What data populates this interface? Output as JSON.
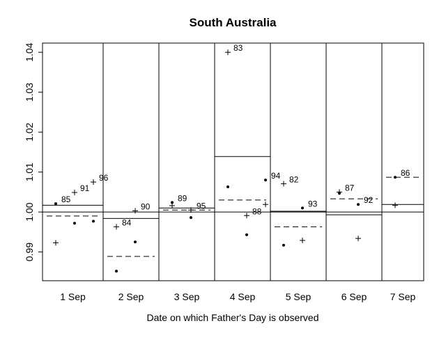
{
  "chart_data": {
    "type": "scatter",
    "title": "South Australia",
    "xlabel": "Date on which Father's Day is observed",
    "ylabel": "",
    "ylim": [
      0.9828,
      1.0423
    ],
    "yticks": [
      0.99,
      1.0,
      1.01,
      1.02,
      1.03,
      1.04
    ],
    "ytick_labels": [
      "0.99",
      "1.00",
      "1.01",
      "1.02",
      "1.03",
      "1.04"
    ],
    "reference_line": 1.0,
    "grid": false,
    "legend": "none",
    "marker_types": [
      "plus",
      "dot"
    ],
    "groups": [
      {
        "label": "1 Sep",
        "solid": 1.0017,
        "dashed": 0.999,
        "points": [
          {
            "pos": 0,
            "marker": "dot",
            "y": 1.0021,
            "tag": "85"
          },
          {
            "pos": 0,
            "marker": "plus",
            "y": 0.9923,
            "tag": ""
          },
          {
            "pos": 1,
            "marker": "plus",
            "y": 1.0049,
            "tag": "91"
          },
          {
            "pos": 1,
            "marker": "dot",
            "y": 0.9972,
            "tag": ""
          },
          {
            "pos": 2,
            "marker": "plus",
            "y": 1.0075,
            "tag": "96"
          },
          {
            "pos": 2,
            "marker": "dot",
            "y": 0.9977,
            "tag": ""
          }
        ]
      },
      {
        "label": "2 Sep",
        "solid": 0.9984,
        "dashed": 0.9889,
        "points": [
          {
            "pos": 0,
            "marker": "plus",
            "y": 0.9963,
            "tag": "84"
          },
          {
            "pos": 0,
            "marker": "dot",
            "y": 0.9852,
            "tag": ""
          },
          {
            "pos": 1,
            "marker": "plus",
            "y": 1.0003,
            "tag": "90"
          },
          {
            "pos": 1,
            "marker": "dot",
            "y": 0.9925,
            "tag": ""
          }
        ]
      },
      {
        "label": "3 Sep",
        "solid": 1.001,
        "dashed": 1.0005,
        "points": [
          {
            "pos": 0,
            "marker": "dot",
            "y": 1.0024,
            "tag": "89"
          },
          {
            "pos": 0,
            "marker": "plus",
            "y": 1.0016,
            "tag": ""
          },
          {
            "pos": 1,
            "marker": "plus",
            "y": 1.0005,
            "tag": "95"
          },
          {
            "pos": 1,
            "marker": "dot",
            "y": 0.9986,
            "tag": ""
          }
        ]
      },
      {
        "label": "4 Sep",
        "solid": 1.0139,
        "dashed": 1.003,
        "points": [
          {
            "pos": 0,
            "marker": "plus",
            "y": 1.04,
            "tag": "83"
          },
          {
            "pos": 0,
            "marker": "dot",
            "y": 1.0063,
            "tag": ""
          },
          {
            "pos": 1,
            "marker": "plus",
            "y": 0.9991,
            "tag": "88"
          },
          {
            "pos": 1,
            "marker": "dot",
            "y": 0.9943,
            "tag": ""
          },
          {
            "pos": 2,
            "marker": "dot",
            "y": 1.008,
            "tag": "94"
          },
          {
            "pos": 2,
            "marker": "plus",
            "y": 1.0019,
            "tag": ""
          }
        ]
      },
      {
        "label": "5 Sep",
        "solid": 1.0002,
        "dashed": 0.9963,
        "points": [
          {
            "pos": 0,
            "marker": "plus",
            "y": 1.0071,
            "tag": "82"
          },
          {
            "pos": 0,
            "marker": "dot",
            "y": 0.9917,
            "tag": ""
          },
          {
            "pos": 1,
            "marker": "dot",
            "y": 1.001,
            "tag": "93"
          },
          {
            "pos": 1,
            "marker": "plus",
            "y": 0.9929,
            "tag": ""
          }
        ]
      },
      {
        "label": "6 Sep",
        "solid": 0.9993,
        "dashed": 1.0033,
        "points": [
          {
            "pos": 0,
            "marker": "plus",
            "y": 1.005,
            "tag": "87"
          },
          {
            "pos": 0,
            "marker": "dot",
            "y": 1.0047,
            "tag": ""
          },
          {
            "pos": 1,
            "marker": "dot",
            "y": 1.0019,
            "tag": "92"
          },
          {
            "pos": 1,
            "marker": "plus",
            "y": 0.9934,
            "tag": ""
          }
        ]
      },
      {
        "label": "7 Sep",
        "solid": 1.0019,
        "dashed": 1.0087,
        "points": [
          {
            "pos": 0,
            "marker": "dot",
            "y": 1.0087,
            "tag": "86"
          },
          {
            "pos": 0,
            "marker": "plus",
            "y": 1.0017,
            "tag": ""
          }
        ]
      }
    ]
  }
}
